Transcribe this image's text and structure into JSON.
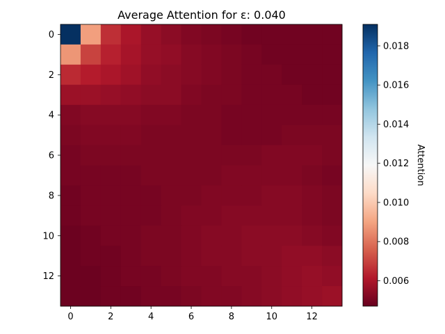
{
  "chart_data": {
    "type": "heatmap",
    "title": "Average Attention for ε: 0.040",
    "rows": 14,
    "cols": 14,
    "x_ticks": [
      "0",
      "2",
      "4",
      "6",
      "8",
      "10",
      "12"
    ],
    "y_ticks": [
      "0",
      "2",
      "4",
      "6",
      "8",
      "10",
      "12"
    ],
    "colorbar": {
      "label": "Attention",
      "colormap": "RdBu",
      "vmin": 0.0047,
      "vmax": 0.0191,
      "ticks": [
        "0.006",
        "0.008",
        "0.010",
        "0.012",
        "0.014",
        "0.016",
        "0.018"
      ]
    },
    "values": [
      [
        0.0191,
        0.0089,
        0.0066,
        0.006,
        0.0056,
        0.0054,
        0.0052,
        0.0051,
        0.005,
        0.0049,
        0.0049,
        0.0049,
        0.0049,
        0.0049
      ],
      [
        0.0087,
        0.007,
        0.0063,
        0.0059,
        0.0056,
        0.0055,
        0.0053,
        0.0052,
        0.0051,
        0.005,
        0.0049,
        0.0049,
        0.0049,
        0.0049
      ],
      [
        0.0065,
        0.0062,
        0.006,
        0.0058,
        0.0055,
        0.0054,
        0.0053,
        0.0052,
        0.0051,
        0.005,
        0.005,
        0.0049,
        0.0049,
        0.0049
      ],
      [
        0.0057,
        0.0057,
        0.0056,
        0.0055,
        0.0054,
        0.0054,
        0.0052,
        0.0051,
        0.0051,
        0.005,
        0.005,
        0.005,
        0.0049,
        0.0049
      ],
      [
        0.0052,
        0.0053,
        0.0053,
        0.0053,
        0.0052,
        0.0052,
        0.0051,
        0.0051,
        0.005,
        0.005,
        0.005,
        0.005,
        0.005,
        0.005
      ],
      [
        0.0051,
        0.0052,
        0.0052,
        0.0052,
        0.0051,
        0.0051,
        0.0051,
        0.0051,
        0.005,
        0.005,
        0.005,
        0.0051,
        0.0051,
        0.0051
      ],
      [
        0.005,
        0.0051,
        0.0051,
        0.0051,
        0.0051,
        0.0051,
        0.0051,
        0.0051,
        0.0051,
        0.0051,
        0.0052,
        0.0052,
        0.0052,
        0.0051
      ],
      [
        0.005,
        0.005,
        0.005,
        0.005,
        0.0051,
        0.0051,
        0.0051,
        0.0051,
        0.0052,
        0.0052,
        0.0052,
        0.0052,
        0.0051,
        0.005
      ],
      [
        0.0049,
        0.005,
        0.005,
        0.005,
        0.005,
        0.0051,
        0.0051,
        0.0052,
        0.0052,
        0.0052,
        0.0053,
        0.0053,
        0.0052,
        0.0051
      ],
      [
        0.0049,
        0.005,
        0.005,
        0.005,
        0.005,
        0.0051,
        0.0052,
        0.0052,
        0.0053,
        0.0053,
        0.0053,
        0.0053,
        0.0052,
        0.0051
      ],
      [
        0.0048,
        0.0049,
        0.005,
        0.005,
        0.0051,
        0.0051,
        0.0052,
        0.0053,
        0.0053,
        0.0054,
        0.0054,
        0.0054,
        0.0053,
        0.0052
      ],
      [
        0.0048,
        0.0049,
        0.0049,
        0.005,
        0.0051,
        0.0051,
        0.0052,
        0.0053,
        0.0053,
        0.0054,
        0.0054,
        0.0055,
        0.0055,
        0.0054
      ],
      [
        0.0048,
        0.0048,
        0.0049,
        0.005,
        0.005,
        0.0051,
        0.0052,
        0.0052,
        0.0053,
        0.0053,
        0.0054,
        0.0055,
        0.0056,
        0.0055
      ],
      [
        0.0048,
        0.0048,
        0.0049,
        0.0049,
        0.005,
        0.005,
        0.0051,
        0.0052,
        0.0052,
        0.0053,
        0.0054,
        0.0055,
        0.0056,
        0.0057
      ]
    ]
  }
}
